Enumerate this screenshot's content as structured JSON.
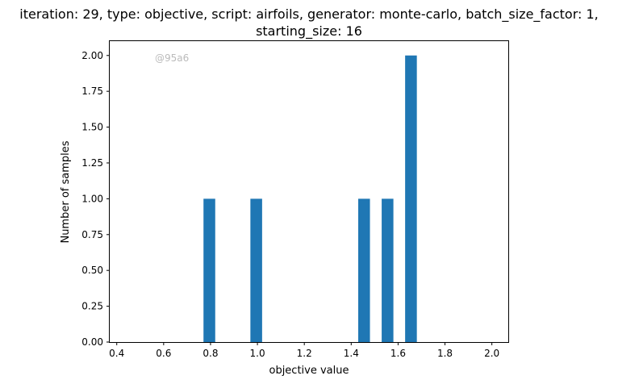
{
  "chart_data": {
    "type": "bar",
    "title": [
      "iteration: 29, type: objective, script: airfoils, generator: monte-carlo, batch_size_factor: 1,",
      "starting_size: 16"
    ],
    "xlabel": "objective value",
    "ylabel": "Number of samples",
    "watermark": "@95a6",
    "xlim": [
      0.37,
      2.07
    ],
    "ylim": [
      0,
      2.1
    ],
    "xticks": [
      0.4,
      0.6,
      0.8,
      1.0,
      1.2,
      1.4,
      1.6,
      1.8,
      2.0
    ],
    "xtick_labels": [
      "0.4",
      "0.6",
      "0.8",
      "1.0",
      "1.2",
      "1.4",
      "1.6",
      "1.8",
      "2.0"
    ],
    "yticks": [
      0,
      0.25,
      0.5,
      0.75,
      1.0,
      1.25,
      1.5,
      1.75,
      2.0
    ],
    "ytick_labels": [
      "0.00",
      "0.25",
      "0.50",
      "0.75",
      "1.00",
      "1.25",
      "1.50",
      "1.75",
      "2.00"
    ],
    "bar_color": "#1f77b4",
    "bars": [
      {
        "x_start": 0.77,
        "x_end": 0.82,
        "value": 1
      },
      {
        "x_start": 0.97,
        "x_end": 1.02,
        "value": 1
      },
      {
        "x_start": 1.43,
        "x_end": 1.48,
        "value": 1
      },
      {
        "x_start": 1.53,
        "x_end": 1.58,
        "value": 1
      },
      {
        "x_start": 1.63,
        "x_end": 1.68,
        "value": 2
      }
    ],
    "grid": false,
    "legend": "none"
  }
}
